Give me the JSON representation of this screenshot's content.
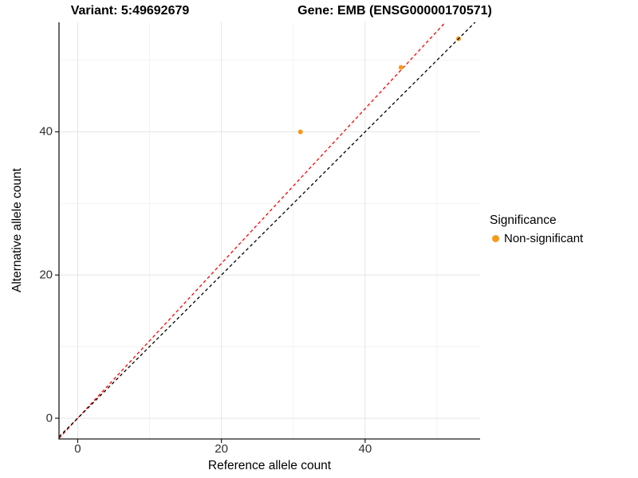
{
  "titles": {
    "left": "Variant: 5:49692679",
    "right": "Gene: EMB (ENSG00000170571)"
  },
  "chart_data": {
    "type": "scatter",
    "xlabel": "Reference allele count",
    "ylabel": "Alternative allele count",
    "xlim": [
      -2.6,
      56.0
    ],
    "ylim": [
      -2.9,
      55.3
    ],
    "x_ticks": [
      0,
      20,
      40
    ],
    "y_ticks": [
      0,
      20,
      40
    ],
    "x_minor_ticks": [
      10,
      30,
      50
    ],
    "y_minor_ticks": [
      10,
      30,
      50
    ],
    "grid": true,
    "grid_major_color": "#E5E5E5",
    "grid_minor_color": "#F2F2F2",
    "axis_line_color": "#1A1A1A",
    "tick_label_color": "#303030",
    "series": [
      {
        "name": "Non-significant",
        "color": "#F8981D",
        "point_radius": 3,
        "points": [
          [
            31,
            40
          ],
          [
            45,
            49
          ],
          [
            53,
            53
          ]
        ]
      }
    ],
    "ref_lines": [
      {
        "name": "expected-ratio-line",
        "slope": 1.081,
        "intercept": 0,
        "color": "#FF0000",
        "style": "dashed",
        "layer": "below-points"
      },
      {
        "name": "identity-line",
        "slope": 1.0,
        "intercept": 0,
        "color": "#000000",
        "style": "dashed",
        "layer": "above-points"
      }
    ],
    "legend": {
      "title": "Significance",
      "position": "right",
      "items": [
        {
          "label": "Non-significant",
          "color": "#F8981D"
        }
      ]
    }
  }
}
